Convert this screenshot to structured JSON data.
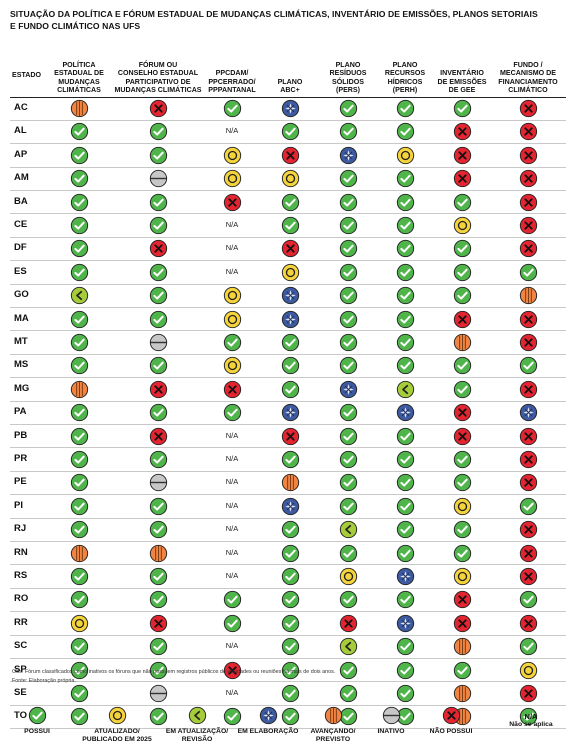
{
  "title_line1": "SITUAÇÃO DA POLÍTICA E FÓRUM ESTADUAL DE MUDANÇAS CLIMÁTICAS, INVENTÁRIO DE EMISSÕES, PLANOS SETORIAIS",
  "title_line2": "E FUNDO CLIMÁTICO NAS UFS",
  "columns": {
    "estado": "ESTADO",
    "c1": [
      "POLÍTICA",
      "ESTADUAL DE",
      "MUDANÇAS",
      "CLIMÁTICAS"
    ],
    "c2": [
      "FÓRUM OU",
      "CONSELHO ESTADUAL",
      "PARTICIPATIVO DE",
      "MUDANÇAS CLIMÁTICAS"
    ],
    "c3": [
      "PPCDAM/",
      "PPCERRADO/",
      "PPPANTANAL"
    ],
    "c4": [
      "PLANO",
      "ABC+"
    ],
    "c5": [
      "PLANO",
      "RESÍDUOS",
      "SÓLIDOS",
      "(PERS)"
    ],
    "c6": [
      "PLANO",
      "RECURSOS",
      "HÍDRICOS",
      "(PERH)"
    ],
    "c7": [
      "INVENTÁRIO",
      "DE EMISSÕES",
      "DE GEE"
    ],
    "c8": [
      "FUNDO /",
      "MECANISMO DE",
      "FINANCIAMENTO",
      "CLIMÁTICO"
    ]
  },
  "na_text": "N/A",
  "rows": [
    {
      "uf": "AC",
      "s": [
        "av",
        "np",
        "ok",
        "el",
        "ok",
        "ok",
        "ok",
        "np"
      ]
    },
    {
      "uf": "AL",
      "s": [
        "ok",
        "ok",
        "na",
        "ok",
        "ok",
        "ok",
        "np",
        "np"
      ]
    },
    {
      "uf": "AP",
      "s": [
        "ok",
        "ok",
        "at",
        "np",
        "el",
        "at",
        "np",
        "np"
      ]
    },
    {
      "uf": "AM",
      "s": [
        "ok",
        "in",
        "at",
        "at",
        "ok",
        "ok",
        "np",
        "np"
      ]
    },
    {
      "uf": "BA",
      "s": [
        "ok",
        "ok",
        "np",
        "ok",
        "ok",
        "ok",
        "ok",
        "np"
      ]
    },
    {
      "uf": "CE",
      "s": [
        "ok",
        "ok",
        "na",
        "ok",
        "ok",
        "ok",
        "at",
        "np"
      ]
    },
    {
      "uf": "DF",
      "s": [
        "ok",
        "np",
        "na",
        "np",
        "ok",
        "ok",
        "ok",
        "np"
      ]
    },
    {
      "uf": "ES",
      "s": [
        "ok",
        "ok",
        "na",
        "at",
        "ok",
        "ok",
        "ok",
        "ok"
      ]
    },
    {
      "uf": "GO",
      "s": [
        "ea",
        "ok",
        "at",
        "el",
        "ok",
        "ok",
        "ok",
        "av"
      ]
    },
    {
      "uf": "MA",
      "s": [
        "ok",
        "ok",
        "at",
        "el",
        "ok",
        "ok",
        "np",
        "np"
      ]
    },
    {
      "uf": "MT",
      "s": [
        "ok",
        "in",
        "ok",
        "ok",
        "ok",
        "ok",
        "av",
        "np"
      ]
    },
    {
      "uf": "MS",
      "s": [
        "ok",
        "ok",
        "at",
        "ok",
        "ok",
        "ok",
        "ok",
        "ok"
      ]
    },
    {
      "uf": "MG",
      "s": [
        "av",
        "np",
        "np",
        "ok",
        "el",
        "ea",
        "ok",
        "np"
      ]
    },
    {
      "uf": "PA",
      "s": [
        "ok",
        "ok",
        "ok",
        "el",
        "ok",
        "el",
        "np",
        "el"
      ]
    },
    {
      "uf": "PB",
      "s": [
        "ok",
        "np",
        "na",
        "np",
        "ok",
        "ok",
        "np",
        "np"
      ]
    },
    {
      "uf": "PR",
      "s": [
        "ok",
        "ok",
        "na",
        "ok",
        "ok",
        "ok",
        "ok",
        "np"
      ]
    },
    {
      "uf": "PE",
      "s": [
        "ok",
        "in",
        "na",
        "av",
        "ok",
        "ok",
        "ok",
        "np"
      ]
    },
    {
      "uf": "PI",
      "s": [
        "ok",
        "ok",
        "na",
        "el",
        "ok",
        "ok",
        "at",
        "ok"
      ]
    },
    {
      "uf": "RJ",
      "s": [
        "ok",
        "ok",
        "na",
        "ok",
        "ea",
        "ok",
        "ok",
        "np"
      ]
    },
    {
      "uf": "RN",
      "s": [
        "av",
        "av",
        "na",
        "ok",
        "ok",
        "ok",
        "ok",
        "np"
      ]
    },
    {
      "uf": "RS",
      "s": [
        "ok",
        "ok",
        "na",
        "ok",
        "at",
        "el",
        "at",
        "np"
      ]
    },
    {
      "uf": "RO",
      "s": [
        "ok",
        "ok",
        "ok",
        "ok",
        "ok",
        "ok",
        "np",
        "ok"
      ]
    },
    {
      "uf": "RR",
      "s": [
        "at",
        "np",
        "ok",
        "ok",
        "np",
        "el",
        "np",
        "np"
      ]
    },
    {
      "uf": "SC",
      "s": [
        "ok",
        "ok",
        "na",
        "ok",
        "ea",
        "ok",
        "av",
        "ok"
      ]
    },
    {
      "uf": "SP",
      "s": [
        "ok",
        "ok",
        "np",
        "ok",
        "ok",
        "ok",
        "ok",
        "at"
      ]
    },
    {
      "uf": "SE",
      "s": [
        "ok",
        "in",
        "na",
        "ok",
        "ok",
        "ok",
        "av",
        "np"
      ]
    },
    {
      "uf": "TO",
      "s": [
        "ok",
        "ok",
        "ok",
        "ok",
        "ok",
        "ok",
        "av",
        "ok"
      ]
    }
  ],
  "notes": {
    "obs": "Obs: Fórum classificados como inativos os fóruns que não possuem registros públicos de atividades ou reuniões há mais de dois anos.",
    "fonte": "Fonte: Elaboração própria."
  },
  "legend": [
    {
      "key": "ok",
      "label": [
        "POSSUI"
      ]
    },
    {
      "key": "at",
      "label": [
        "ATUALIZADO/",
        "PUBLICADO EM 2025"
      ]
    },
    {
      "key": "ea",
      "label": [
        "EM ATUALIZAÇÃO/",
        "REVISÃO"
      ]
    },
    {
      "key": "el",
      "label": [
        "EM ELABORAÇÃO"
      ]
    },
    {
      "key": "av",
      "label": [
        "AVANÇANDO/",
        "PREVISTO"
      ]
    },
    {
      "key": "in",
      "label": [
        "INATIVO"
      ]
    },
    {
      "key": "np",
      "label": [
        "NÃO POSSUI"
      ]
    },
    {
      "key": "na",
      "label": [
        "Não se aplica"
      ],
      "symbol": "N/A"
    }
  ],
  "status_colors": {
    "ok": {
      "fill": "#4fb54b",
      "name": "check-icon"
    },
    "at": {
      "fill": "#f5d33b",
      "name": "target-circle-icon"
    },
    "ea": {
      "fill": "#a5cd3a",
      "name": "chevron-left-icon"
    },
    "el": {
      "fill": "#3d5aa0",
      "name": "star-cross-icon"
    },
    "av": {
      "fill": "#f08440",
      "name": "striped-circle-icon"
    },
    "in": {
      "fill": "#c7c7c7",
      "name": "minus-circle-icon"
    },
    "np": {
      "fill": "#e32431",
      "name": "x-icon"
    }
  }
}
